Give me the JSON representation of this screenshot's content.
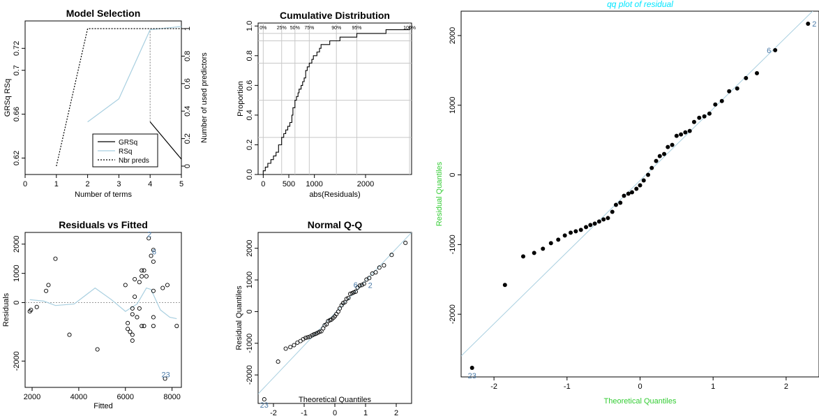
{
  "chart_data": [
    {
      "type": "line",
      "title": "Model Selection",
      "xlabel": "Number of terms",
      "ylabel": "GRSq  RSq",
      "ylabel_right": "Number of used predictors",
      "xlim": [
        0,
        5
      ],
      "ylim": [
        0.605,
        0.745
      ],
      "xticks": [
        "0",
        "1",
        "2",
        "3",
        "4",
        "5"
      ],
      "yticks": [
        "0.62",
        "0.66",
        "0.7",
        "0.72"
      ],
      "ylim_right": [
        0,
        1
      ],
      "yticks_right": [
        "0",
        "0.2",
        "0.4",
        "0.6",
        "0.8",
        "1"
      ],
      "series": [
        {
          "name": "GRSq",
          "color": "#000000",
          "dash": "solid",
          "x": [
            4,
            5
          ],
          "y": [
            0.653,
            0.619
          ]
        },
        {
          "name": "RSq",
          "color": "#a8cfe0",
          "dash": "solid",
          "x": [
            2,
            3,
            4,
            5
          ],
          "y": [
            0.653,
            0.674,
            0.737,
            0.74
          ]
        },
        {
          "name": "Nbr preds",
          "color": "#000000",
          "dash": "dotted",
          "axis": "right",
          "x": [
            1,
            2,
            3,
            4,
            5
          ],
          "y": [
            0,
            1,
            1,
            1,
            1
          ]
        }
      ],
      "markers": [
        {
          "x": 4,
          "from": 0.653,
          "to": 0.737,
          "color": "#7f7f7f"
        }
      ],
      "legend": "bottom-right"
    },
    {
      "type": "line",
      "title": "Cumulative Distribution",
      "xlabel": "abs(Residuals)",
      "ylabel": "Proportion",
      "xlim": [
        -100,
        2900
      ],
      "ylim": [
        0,
        1.02
      ],
      "xticks": [
        "0",
        "500",
        "1000",
        "2000"
      ],
      "yticks": [
        "0.0",
        "0.2",
        "0.4",
        "0.6",
        "0.8",
        "1.0"
      ],
      "quantile_labels": [
        "0%",
        "25%",
        "50%",
        "75%",
        "90%",
        "95%",
        "100%"
      ],
      "quantile_x": [
        0,
        360,
        620,
        900,
        1430,
        1830,
        2860
      ],
      "x": [
        0,
        40,
        90,
        150,
        200,
        250,
        300,
        360,
        400,
        440,
        480,
        520,
        560,
        580,
        620,
        650,
        680,
        700,
        740,
        770,
        800,
        830,
        860,
        900,
        950,
        980,
        1050,
        1100,
        1130,
        1200,
        1300,
        1380,
        1430,
        1500,
        1650,
        1830,
        2050,
        2400,
        2700,
        2860
      ],
      "y": [
        0.025,
        0.05,
        0.075,
        0.1,
        0.125,
        0.15,
        0.2,
        0.25,
        0.275,
        0.3,
        0.325,
        0.35,
        0.4,
        0.45,
        0.5,
        0.525,
        0.55,
        0.575,
        0.6,
        0.625,
        0.65,
        0.7,
        0.725,
        0.75,
        0.775,
        0.8,
        0.825,
        0.85,
        0.875,
        0.875,
        0.9,
        0.9,
        0.9,
        0.925,
        0.925,
        0.95,
        0.95,
        0.975,
        0.975,
        1.0
      ],
      "hlines": [
        0.25,
        0.5,
        0.75,
        0.9,
        0.95
      ]
    },
    {
      "type": "scatter",
      "title": "Residuals vs Fitted",
      "xlabel": "Fitted",
      "ylabel": "Residuals",
      "xlim": [
        1700,
        8400
      ],
      "ylim": [
        -2900,
        2400
      ],
      "xticks": [
        "2000",
        "4000",
        "6000",
        "8000"
      ],
      "yticks": [
        "-2000",
        "0",
        "1000",
        "2000"
      ],
      "points": [
        [
          1900,
          -300
        ],
        [
          1950,
          -250
        ],
        [
          2200,
          -150
        ],
        [
          2600,
          400
        ],
        [
          2700,
          600
        ],
        [
          3000,
          1500
        ],
        [
          3600,
          -1100
        ],
        [
          4800,
          -1600
        ],
        [
          6000,
          600
        ],
        [
          6100,
          -700
        ],
        [
          6100,
          -900
        ],
        [
          6200,
          -1000
        ],
        [
          6300,
          -200
        ],
        [
          6300,
          -400
        ],
        [
          6300,
          -1100
        ],
        [
          6300,
          -1300
        ],
        [
          6400,
          800
        ],
        [
          6400,
          200
        ],
        [
          6500,
          -500
        ],
        [
          6600,
          700
        ],
        [
          6600,
          -200
        ],
        [
          6700,
          900
        ],
        [
          6700,
          1100
        ],
        [
          6700,
          -800
        ],
        [
          6800,
          1100
        ],
        [
          6800,
          -800
        ],
        [
          6900,
          900
        ],
        [
          7000,
          2200
        ],
        [
          7100,
          1600
        ],
        [
          7200,
          1800
        ],
        [
          7200,
          1400
        ],
        [
          7200,
          400
        ],
        [
          7200,
          -500
        ],
        [
          7200,
          -800
        ],
        [
          7600,
          500
        ],
        [
          7700,
          -2600
        ],
        [
          7800,
          600
        ],
        [
          8200,
          -800
        ]
      ],
      "smooth_x": [
        1900,
        2500,
        3000,
        3800,
        4700,
        5400,
        6000,
        6500,
        6900,
        7100,
        7500,
        7900,
        8200
      ],
      "smooth_y": [
        100,
        50,
        -100,
        -50,
        500,
        100,
        -300,
        -50,
        500,
        450,
        -250,
        -500,
        -550
      ],
      "labels": [
        {
          "text": "2",
          "x": 7000,
          "y": 2200
        },
        {
          "text": "6",
          "x": 7200,
          "y": 1600
        },
        {
          "text": "23",
          "x": 7700,
          "y": -2600
        }
      ]
    },
    {
      "type": "scatter",
      "title": "Normal Q-Q",
      "xlabel": "Theoretical Quantiles",
      "ylabel": "Residual Quantiles",
      "xlim": [
        -2.5,
        2.5
      ],
      "ylim": [
        -2900,
        2500
      ],
      "xticks": [
        "-2",
        "-1",
        "0",
        "1",
        "2"
      ],
      "yticks": [
        "-2000",
        "-1000",
        "0",
        "1000",
        "2000"
      ],
      "ref_line": [
        [
          -2.5,
          -2600
        ],
        [
          2.5,
          2500
        ]
      ],
      "labels": [
        {
          "text": "23",
          "point": 0
        },
        {
          "text": "6",
          "point": 38
        },
        {
          "text": "2",
          "point": 39
        }
      ]
    },
    {
      "type": "scatter",
      "title": "qq plot of residual",
      "xlabel": "Theoretical Quantiles",
      "ylabel": "Residual Quantiles",
      "title_color": "#00e5ff",
      "axis_label_color": "#33cc33",
      "xlim": [
        -2.45,
        2.45
      ],
      "ylim": [
        -2900,
        2350
      ],
      "xticks": [
        "-2",
        "-1",
        "0",
        "1",
        "2"
      ],
      "yticks": [
        "-2000",
        "-1000",
        "0",
        "1000",
        "2000"
      ],
      "x": [
        -2.3,
        -1.85,
        -1.6,
        -1.45,
        -1.33,
        -1.22,
        -1.12,
        -1.03,
        -0.95,
        -0.88,
        -0.81,
        -0.74,
        -0.68,
        -0.62,
        -0.56,
        -0.5,
        -0.44,
        -0.38,
        -0.33,
        -0.27,
        -0.22,
        -0.16,
        -0.11,
        -0.05,
        0.0,
        0.05,
        0.11,
        0.16,
        0.22,
        0.27,
        0.33,
        0.38,
        0.44,
        0.5,
        0.56,
        0.62,
        0.68,
        0.74,
        0.81,
        0.88,
        0.95,
        1.03,
        1.12,
        1.22,
        1.33,
        1.45,
        1.6,
        1.85,
        2.3
      ],
      "y": [
        -2770,
        -1580,
        -1170,
        -1120,
        -1060,
        -980,
        -930,
        -870,
        -830,
        -810,
        -790,
        -750,
        -720,
        -700,
        -670,
        -640,
        -620,
        -530,
        -430,
        -400,
        -300,
        -270,
        -250,
        -200,
        -150,
        -80,
        0,
        100,
        200,
        270,
        300,
        400,
        430,
        560,
        580,
        610,
        630,
        760,
        820,
        840,
        880,
        1010,
        1060,
        1200,
        1240,
        1390,
        1460,
        1790,
        2170
      ],
      "ref_line": [
        [
          -2.45,
          -2600
        ],
        [
          2.45,
          2440
        ]
      ],
      "labels": [
        {
          "text": "23",
          "point": 0
        },
        {
          "text": "6",
          "point": 47
        },
        {
          "text": "2",
          "point": 48
        }
      ]
    }
  ]
}
